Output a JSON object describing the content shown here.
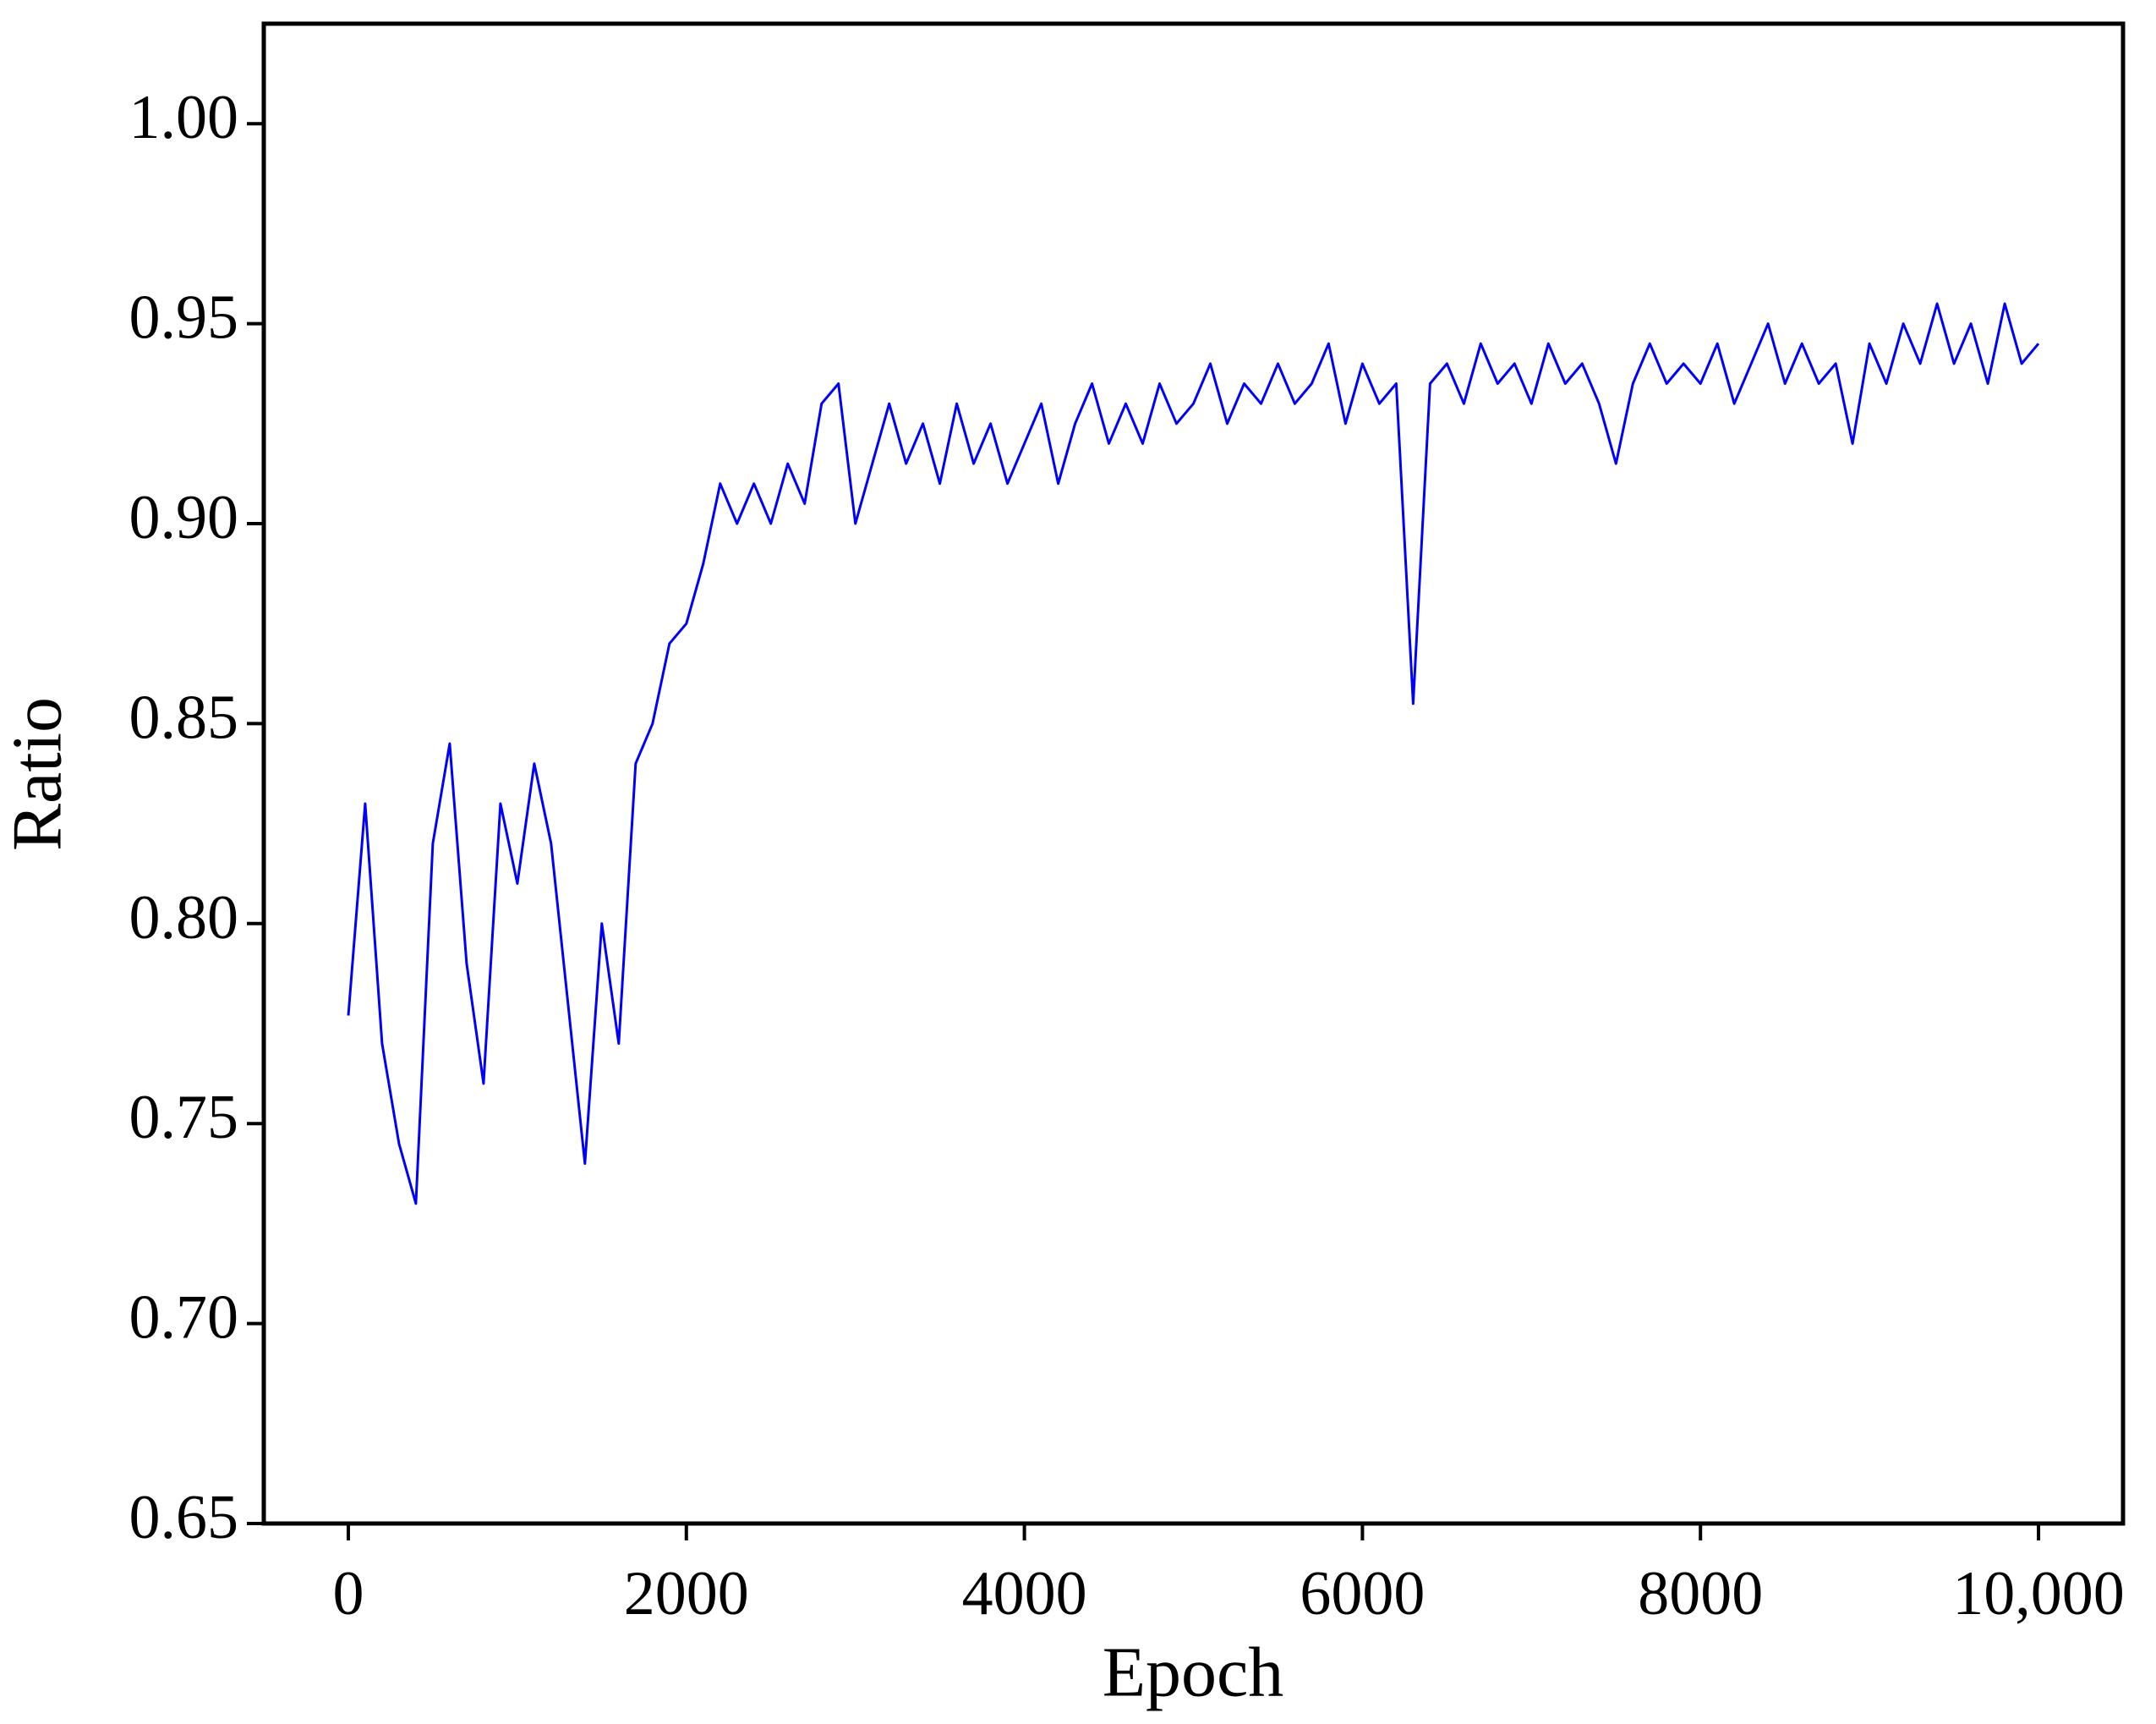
{
  "chart_data": {
    "type": "line",
    "xlabel": "Epoch",
    "ylabel": "Ratio",
    "color": "#0000ff",
    "x": [
      0,
      100,
      200,
      300,
      400,
      500,
      600,
      700,
      800,
      900,
      1000,
      1100,
      1200,
      1300,
      1400,
      1500,
      1600,
      1700,
      1800,
      1900,
      2000,
      2100,
      2200,
      2300,
      2400,
      2500,
      2600,
      2700,
      2800,
      2900,
      3000,
      3100,
      3200,
      3300,
      3400,
      3500,
      3600,
      3700,
      3800,
      3900,
      4000,
      4100,
      4200,
      4300,
      4400,
      4500,
      4600,
      4700,
      4800,
      4900,
      5000,
      5100,
      5200,
      5300,
      5400,
      5500,
      5600,
      5700,
      5800,
      5900,
      6000,
      6100,
      6200,
      6300,
      6400,
      6500,
      6600,
      6700,
      6800,
      6900,
      7000,
      7100,
      7200,
      7300,
      7400,
      7500,
      7600,
      7700,
      7800,
      7900,
      8000,
      8100,
      8200,
      8300,
      8400,
      8500,
      8600,
      8700,
      8800,
      8900,
      9000,
      9100,
      9200,
      9300,
      9400,
      9500,
      9600,
      9700,
      9800,
      9900,
      10000
    ],
    "values": [
      0.777,
      0.83,
      0.77,
      0.745,
      0.73,
      0.82,
      0.845,
      0.79,
      0.76,
      0.83,
      0.81,
      0.84,
      0.82,
      0.78,
      0.74,
      0.8,
      0.77,
      0.84,
      0.85,
      0.87,
      0.875,
      0.89,
      0.91,
      0.9,
      0.91,
      0.9,
      0.915,
      0.905,
      0.93,
      0.935,
      0.9,
      0.915,
      0.93,
      0.915,
      0.925,
      0.91,
      0.93,
      0.915,
      0.925,
      0.91,
      0.92,
      0.93,
      0.91,
      0.925,
      0.935,
      0.92,
      0.93,
      0.92,
      0.935,
      0.925,
      0.93,
      0.94,
      0.925,
      0.935,
      0.93,
      0.94,
      0.93,
      0.935,
      0.945,
      0.925,
      0.94,
      0.93,
      0.935,
      0.855,
      0.935,
      0.94,
      0.93,
      0.945,
      0.935,
      0.94,
      0.93,
      0.945,
      0.935,
      0.94,
      0.93,
      0.915,
      0.935,
      0.945,
      0.935,
      0.94,
      0.935,
      0.945,
      0.93,
      0.94,
      0.95,
      0.935,
      0.945,
      0.935,
      0.94,
      0.92,
      0.945,
      0.935,
      0.95,
      0.94,
      0.955,
      0.94,
      0.95,
      0.935,
      0.955,
      0.94,
      0.945
    ],
    "xlim": [
      -500,
      10500
    ],
    "xticks": [
      0,
      2000,
      4000,
      6000,
      8000,
      {
        "value": 10000,
        "label": "10,000"
      }
    ],
    "ylim": [
      0.65,
      1.025
    ],
    "yticks": [
      {
        "value": 0.65,
        "label": "0.65"
      },
      {
        "value": 0.7,
        "label": "0.70"
      },
      {
        "value": 0.75,
        "label": "0.75"
      },
      {
        "value": 0.8,
        "label": "0.80"
      },
      {
        "value": 0.85,
        "label": "0.85"
      },
      {
        "value": 0.9,
        "label": "0.90"
      },
      {
        "value": 0.95,
        "label": "0.95"
      },
      {
        "value": 1.0,
        "label": "1.00"
      }
    ]
  }
}
